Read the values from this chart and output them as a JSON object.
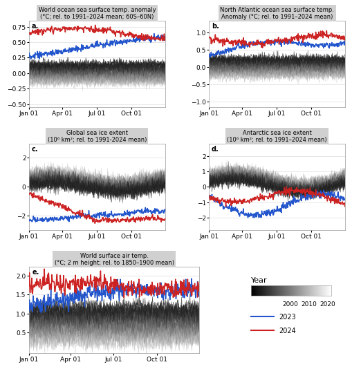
{
  "title_a": "World ocean sea surface temp. anomaly\n(°C; rel. to 1991–2024 mean; 60S–60N)",
  "title_b": "North Atlantic ocean sea surface temp.\nAnomaly (°C; rel. to 1991–2024 mean)",
  "title_c": "Global sea ice extent\n(10⁶ km²; rel. to 1991-2024 mean)",
  "title_d": "Antarctic sea ice extent\n(10⁶ km²; rel. to 1991–2024 mean)",
  "title_e": "World surface air temp.\n(°C; 2 m height; rel. to 1850–1900 mean)",
  "label_a": "a.",
  "label_b": "b.",
  "label_c": "c.",
  "label_d": "d.",
  "label_e": "e.",
  "year_start": 1979,
  "year_end": 2022,
  "color_2023": "#2255cc",
  "color_2024": "#cc2222",
  "xlabels": [
    "Jan 01",
    "Apr 01",
    "Jul 01",
    "Oct 01"
  ],
  "legend_title": "Year",
  "legend_years_labels": [
    "2000",
    "2010",
    "2020"
  ],
  "ylim_a": [
    -0.55,
    0.85
  ],
  "ylim_b": [
    -1.15,
    1.35
  ],
  "ylim_c": [
    -3.0,
    3.0
  ],
  "ylim_d": [
    -2.8,
    2.8
  ],
  "ylim_e": [
    -0.05,
    2.25
  ],
  "yticks_a": [
    -0.5,
    -0.25,
    0.0,
    0.25,
    0.5,
    0.75
  ],
  "yticks_b": [
    -1.0,
    -0.5,
    0.0,
    0.5,
    1.0
  ],
  "yticks_c": [
    -2,
    0,
    2
  ],
  "yticks_d": [
    -2,
    -1,
    0,
    1,
    2
  ],
  "yticks_e": [
    0.5,
    1.0,
    1.5,
    2.0
  ],
  "title_bg": "#d0d0d0",
  "title_fontsize": 6.0,
  "tick_fontsize": 6.5
}
